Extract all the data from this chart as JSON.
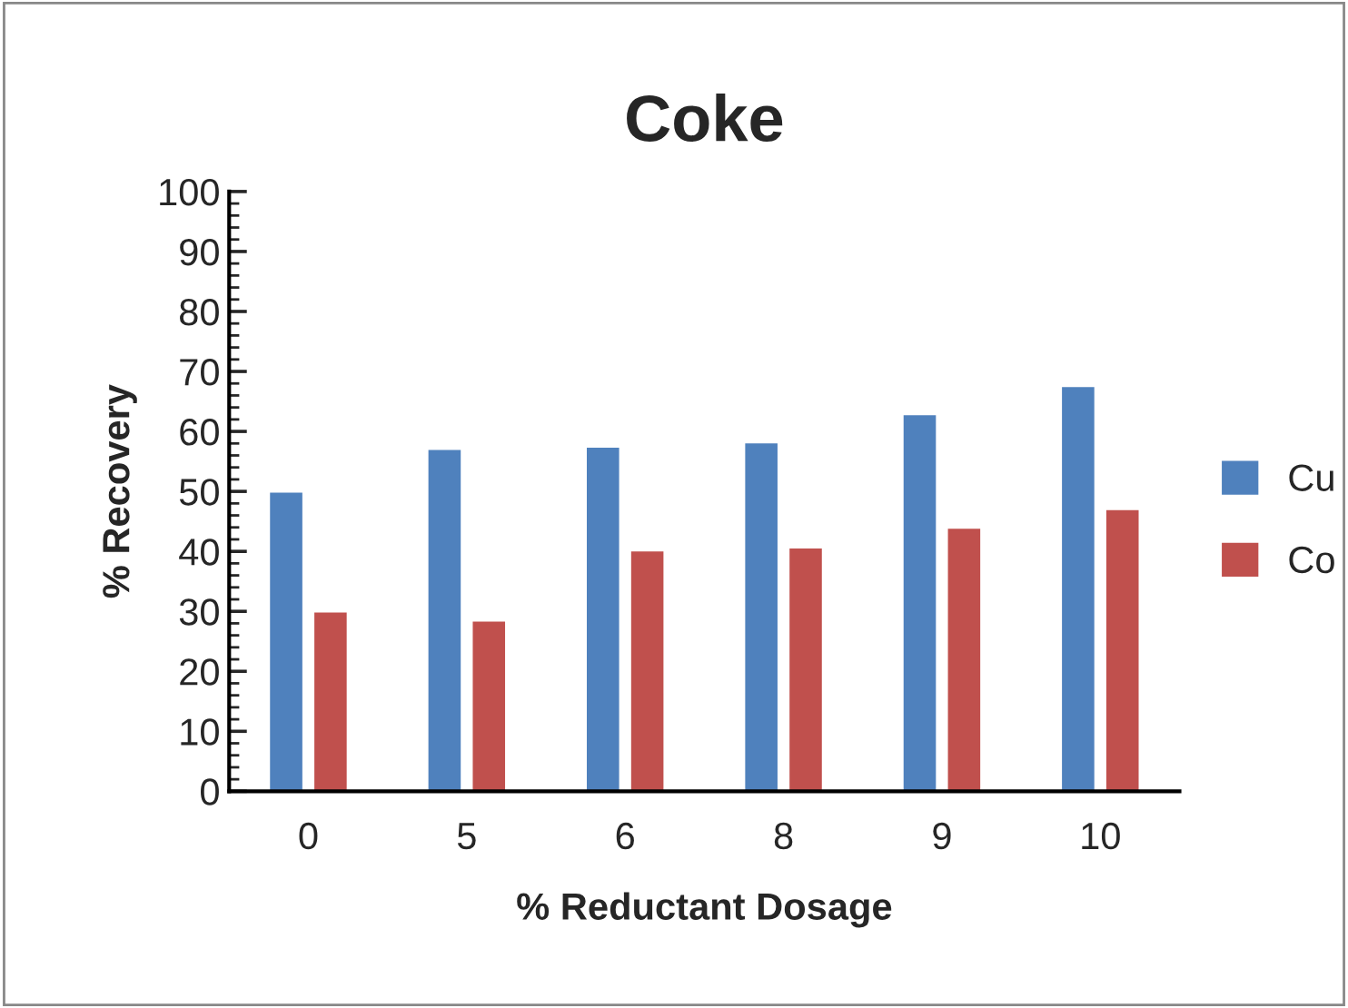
{
  "chart_data": {
    "type": "bar",
    "title": "Coke",
    "xlabel": "% Reductant Dosage",
    "ylabel": "% Recovery",
    "categories": [
      "0",
      "5",
      "6",
      "8",
      "9",
      "10"
    ],
    "series": [
      {
        "name": "Cu",
        "color": "#4f81bd",
        "values": [
          50.0,
          57.1,
          57.5,
          58.2,
          62.9,
          67.6
        ]
      },
      {
        "name": "Co",
        "color": "#c0504d",
        "values": [
          30.0,
          28.5,
          40.2,
          40.7,
          44.0,
          47.1
        ]
      }
    ],
    "ylim": [
      0,
      100
    ],
    "yticks": [
      0,
      10,
      20,
      30,
      40,
      50,
      60,
      70,
      80,
      90,
      100
    ],
    "grid": false,
    "legend": "right"
  }
}
